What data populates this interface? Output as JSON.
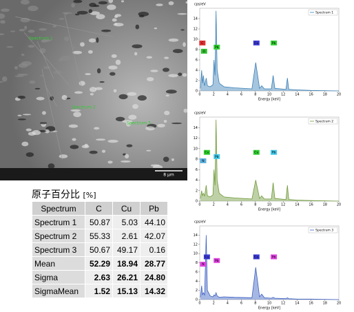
{
  "sem": {
    "labels": [
      "Spectrum 1",
      "Spectrum 2",
      "Spectrum 3"
    ],
    "scale": "8 µm"
  },
  "table": {
    "title": "原子百分比",
    "unit": "[%]",
    "header": [
      "Spectrum",
      "C",
      "Cu",
      "Pb"
    ],
    "rows": [
      [
        "Spectrum 1",
        "50.87",
        "5.03",
        "44.10"
      ],
      [
        "Spectrum 2",
        "55.33",
        "2.61",
        "42.07"
      ],
      [
        "Spectrum 3",
        "50.67",
        "49.17",
        "0.16"
      ],
      [
        "Mean",
        "52.29",
        "18.94",
        "28.77"
      ],
      [
        "Sigma",
        "2.63",
        "26.21",
        "24.80"
      ],
      [
        "SigmaMean",
        "1.52",
        "15.13",
        "14.32"
      ]
    ]
  },
  "chart_data": [
    {
      "type": "area",
      "y_label": "cps/eV",
      "x_label": "Energy [keV]",
      "x": [
        0.1,
        0.28,
        0.4,
        0.52,
        0.7,
        0.93,
        1.1,
        1.5,
        1.9,
        2.05,
        2.2,
        2.35,
        2.5,
        2.8,
        3.5,
        5,
        7.5,
        8.05,
        8.6,
        8.9,
        9.3,
        10.3,
        10.55,
        10.8,
        12.4,
        12.6,
        12.8,
        14,
        16,
        20
      ],
      "series": [
        {
          "name": "Spectrum 1",
          "color": "#3a7fb5",
          "values": [
            0.5,
            4,
            1.5,
            3,
            1,
            2.5,
            1,
            0.8,
            1.2,
            6,
            3,
            15.5,
            4,
            1.5,
            0.8,
            0.6,
            0.4,
            5.5,
            0.5,
            1,
            0.4,
            0.4,
            3,
            0.5,
            0.3,
            2.5,
            0.3,
            0.2,
            0.1,
            0
          ]
        }
      ],
      "markers": [
        {
          "label": "C",
          "energy": 0.28,
          "color": "#e03030"
        },
        {
          "label": "O",
          "energy": 0.52,
          "color": "#30c030"
        },
        {
          "label": "Pb",
          "energy": 2.35,
          "color": "#30d030"
        },
        {
          "label": "Cu",
          "energy": 8.05,
          "color": "#3b3bd6"
        },
        {
          "label": "Pb",
          "energy": 10.55,
          "color": "#30d030"
        }
      ],
      "xlim": [
        0,
        20
      ],
      "xticks": [
        0,
        2,
        4,
        6,
        8,
        10,
        12,
        14,
        16,
        18,
        20
      ],
      "ylim": [
        0,
        16
      ],
      "yticks": [
        0,
        2,
        4,
        6,
        8,
        10,
        12,
        14
      ]
    },
    {
      "type": "area",
      "y_label": "cps/eV",
      "x_label": "Energy [keV]",
      "x": [
        0.1,
        0.28,
        0.4,
        0.52,
        0.7,
        0.93,
        1.1,
        1.5,
        1.9,
        2.05,
        2.2,
        2.35,
        2.5,
        2.8,
        3.5,
        5,
        7.5,
        8.05,
        8.6,
        8.9,
        9.3,
        10.3,
        10.55,
        10.8,
        12.4,
        12.6,
        12.8,
        14,
        16,
        20
      ],
      "series": [
        {
          "name": "Spectrum 2",
          "color": "#6f9a3a",
          "values": [
            0.5,
            2,
            1,
            1.5,
            1,
            3,
            1,
            0.8,
            1.2,
            6,
            3,
            15.5,
            4,
            1.5,
            0.8,
            0.6,
            0.4,
            4,
            0.5,
            1,
            0.4,
            0.4,
            3.5,
            0.5,
            0.3,
            3,
            0.3,
            0.2,
            0.1,
            0
          ]
        }
      ],
      "markers": [
        {
          "label": "Cu",
          "energy": 0.93,
          "color": "#30d030"
        },
        {
          "label": "N",
          "energy": 0.39,
          "color": "#5ab0e0"
        },
        {
          "label": "Pb",
          "energy": 2.35,
          "color": "#40c8e8"
        },
        {
          "label": "Cu",
          "energy": 8.05,
          "color": "#30d030"
        },
        {
          "label": "Pb",
          "energy": 10.55,
          "color": "#40c8e8"
        }
      ],
      "xlim": [
        0,
        20
      ],
      "xticks": [
        0,
        2,
        4,
        6,
        8,
        10,
        12,
        14,
        16,
        18,
        20
      ],
      "ylim": [
        0,
        16
      ],
      "yticks": [
        0,
        2,
        4,
        6,
        8,
        10,
        12,
        14
      ]
    },
    {
      "type": "area",
      "y_label": "cps/eV",
      "x_label": "Energy [keV]",
      "x": [
        0.1,
        0.28,
        0.4,
        0.52,
        0.7,
        0.93,
        1.1,
        1.5,
        1.9,
        2.05,
        2.2,
        2.35,
        2.5,
        2.8,
        3.5,
        5,
        7.5,
        8.05,
        8.6,
        8.9,
        9.3,
        10.3,
        10.55,
        10.8,
        12.4,
        12.6,
        12.8,
        14,
        16,
        20
      ],
      "series": [
        {
          "name": "Spectrum 3",
          "color": "#3a5fc0",
          "values": [
            0.5,
            3,
            1,
            1.5,
            1,
            14,
            2,
            0.8,
            0.6,
            1,
            0.8,
            1.5,
            0.8,
            0.5,
            0.6,
            0.5,
            0.4,
            7,
            0.6,
            1.2,
            0.4,
            0.3,
            0.5,
            0.3,
            0.2,
            0.4,
            0.2,
            0.1,
            0.1,
            0
          ]
        }
      ],
      "markers": [
        {
          "label": "Cu",
          "energy": 0.93,
          "color": "#3b3bd6"
        },
        {
          "label": "N",
          "energy": 0.39,
          "color": "#e040e0"
        },
        {
          "label": "Pb",
          "energy": 2.35,
          "color": "#e040e0"
        },
        {
          "label": "Cu",
          "energy": 8.05,
          "color": "#3b3bd6"
        },
        {
          "label": "Pb",
          "energy": 10.55,
          "color": "#e040e0"
        }
      ],
      "xlim": [
        0,
        20
      ],
      "xticks": [
        0,
        2,
        4,
        6,
        8,
        10,
        12,
        14,
        16,
        18,
        20
      ],
      "ylim": [
        0,
        16
      ],
      "yticks": [
        0,
        2,
        4,
        6,
        8,
        10,
        12,
        14
      ]
    }
  ]
}
